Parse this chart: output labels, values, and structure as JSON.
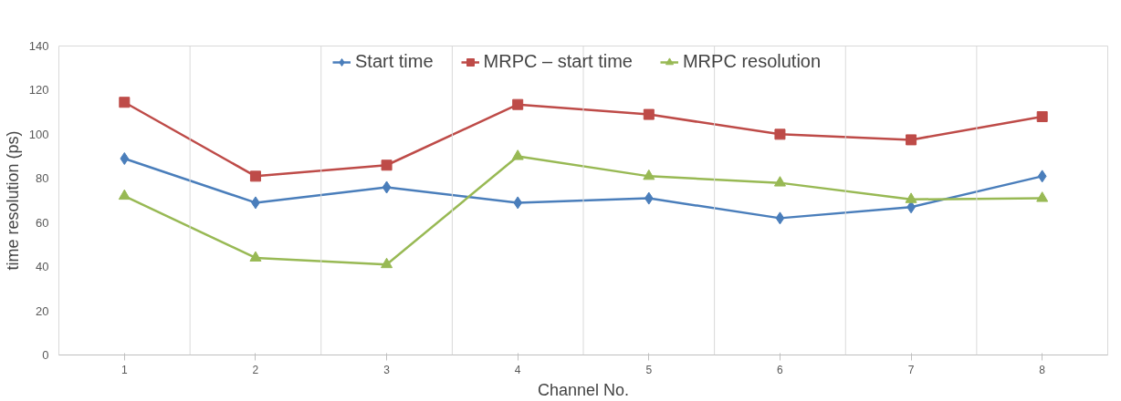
{
  "chart_data": {
    "type": "line",
    "xlabel": "Channel No.",
    "ylabel": "time resolution (ps)",
    "categories": [
      "1",
      "2",
      "3",
      "4",
      "5",
      "6",
      "7",
      "8"
    ],
    "series": [
      {
        "name": "Start time",
        "color": "#4a7ebb",
        "marker": "diamond",
        "values": [
          89,
          69,
          76,
          69,
          71,
          62,
          67,
          81
        ]
      },
      {
        "name": "MRPC – start time",
        "color": "#be4b48",
        "marker": "square",
        "values": [
          114.5,
          81,
          86,
          113.5,
          109,
          100,
          97.5,
          108
        ]
      },
      {
        "name": "MRPC resolution",
        "color": "#98b954",
        "marker": "triangle",
        "values": [
          72,
          44,
          41,
          90,
          81,
          78,
          70.5,
          71
        ]
      }
    ],
    "ylim": [
      0,
      140
    ],
    "yticks": [
      0,
      20,
      40,
      60,
      80,
      100,
      120,
      140
    ],
    "grid": "x",
    "legend": "top",
    "line_style": "solid"
  }
}
